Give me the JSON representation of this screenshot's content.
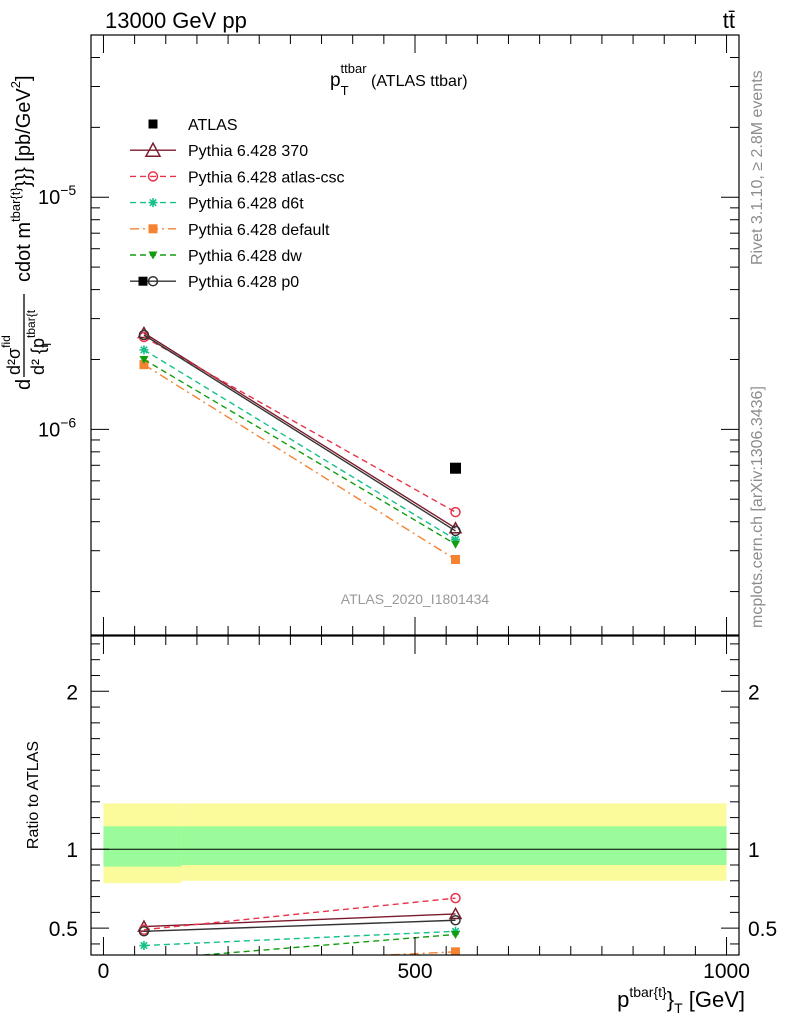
{
  "header": {
    "energy_label": "13000 GeV pp",
    "process_label": "tt̄"
  },
  "side_labels": {
    "rivet": "Rivet 3.1.10, ≥ 2.8M events",
    "mcplots": "mcplots.cern.ch [arXiv:1306.3436]"
  },
  "chart_data": [
    {
      "type": "line",
      "panel": "main",
      "title": {
        "main": "p",
        "sub": "T",
        "sup": "ttbar",
        "rest": " (ATLAS ttbar)"
      },
      "ylabel": "d d²σ^fid / d² {p^tbar{t}_T cdot m^{tbar{t}}}} [pb/GeV²]",
      "ylabel_parts": {
        "d": "d",
        "num": "d²σ",
        "num_sup": "fid",
        "den": "d² {p",
        "den_sup": "tbar{t",
        "den_sub": "T",
        "rest": "cdot m",
        "rest_sup": "tbar{t}",
        "rest2": "}}} [pb/GeV",
        "unit_sup": "2",
        "unit_close": "]"
      },
      "yscale": "log",
      "xlim": [
        -20,
        1020
      ],
      "ylim": [
        1.3e-07,
        5e-05
      ],
      "ytick_labels": [
        {
          "value": 1e-05,
          "base": "10",
          "exp": "−5"
        },
        {
          "value": 1e-06,
          "base": "10",
          "exp": "−6"
        }
      ],
      "watermark": "ATLAS_2020_I1801434",
      "legend_position": "top-left",
      "series": [
        {
          "name": "ATLAS",
          "color": "#000000",
          "marker": "square",
          "style": "none",
          "x": [
            565
          ],
          "y": [
            6.8e-07
          ]
        },
        {
          "name": "Pythia 6.428 370",
          "color": "#7b1a2b",
          "marker": "triangle-open",
          "style": "solid",
          "x": [
            65,
            565
          ],
          "y": [
            2.6e-06,
            3.75e-07
          ]
        },
        {
          "name": "Pythia 6.428 atlas-csc",
          "color": "#e8344a",
          "marker": "circle-open",
          "style": "dashed",
          "x": [
            65,
            565
          ],
          "y": [
            2.5e-06,
            4.4e-07
          ]
        },
        {
          "name": "Pythia 6.428 d6t",
          "color": "#16c08a",
          "marker": "star",
          "style": "dashed",
          "x": [
            65,
            565
          ],
          "y": [
            2.2e-06,
            3.35e-07
          ]
        },
        {
          "name": "Pythia 6.428 default",
          "color": "#f58231",
          "marker": "square",
          "style": "dashdot",
          "x": [
            65,
            565
          ],
          "y": [
            1.9e-06,
            2.75e-07
          ]
        },
        {
          "name": "Pythia 6.428 dw",
          "color": "#129d0f",
          "marker": "triangle-down",
          "style": "dashed",
          "x": [
            65,
            565
          ],
          "y": [
            2e-06,
            3.2e-07
          ]
        },
        {
          "name": "Pythia 6.428 p0",
          "color": "#333333",
          "marker": "circle-open-filled-square",
          "style": "solid",
          "x": [
            65,
            565
          ],
          "y": [
            2.55e-06,
            3.65e-07
          ]
        }
      ]
    },
    {
      "type": "line",
      "panel": "ratio",
      "ylabel": "Ratio to ATLAS",
      "xlabel": {
        "main": "p",
        "sup": "tbar{t}",
        "close": "}",
        "sub": "T",
        "unit": " [GeV]"
      },
      "xlim": [
        -20,
        1020
      ],
      "ylim": [
        0.33,
        2.35
      ],
      "xticks": [
        0,
        500,
        1000
      ],
      "xtick_labels": [
        "0",
        "500",
        "1000"
      ],
      "yticks": [
        0.5,
        1,
        2
      ],
      "ytick_labels": [
        "0.5",
        "1",
        "2"
      ],
      "bands": [
        {
          "name": "yellow",
          "color": "#fbfb9b",
          "bins": [
            {
              "x0": 0,
              "x1": 125,
              "lo": 0.785,
              "hi": 1.29
            },
            {
              "x0": 125,
              "x1": 1000,
              "lo": 0.8,
              "hi": 1.29
            }
          ]
        },
        {
          "name": "green",
          "color": "#99fb99",
          "bins": [
            {
              "x0": 0,
              "x1": 125,
              "lo": 0.89,
              "hi": 1.145
            },
            {
              "x0": 125,
              "x1": 1000,
              "lo": 0.9,
              "hi": 1.145
            }
          ]
        }
      ],
      "series": [
        {
          "name": "Pythia 6.428 370",
          "color": "#7b1a2b",
          "marker": "triangle-open",
          "style": "solid",
          "x": [
            65,
            565
          ],
          "y": [
            0.51,
            0.59
          ]
        },
        {
          "name": "Pythia 6.428 atlas-csc",
          "color": "#e8344a",
          "marker": "circle-open",
          "style": "dashed",
          "x": [
            65,
            565
          ],
          "y": [
            0.49,
            0.69
          ]
        },
        {
          "name": "Pythia 6.428 d6t",
          "color": "#16c08a",
          "marker": "star",
          "style": "dashed",
          "x": [
            65,
            565
          ],
          "y": [
            0.39,
            0.48
          ]
        },
        {
          "name": "Pythia 6.428 default",
          "color": "#f58231",
          "marker": "square",
          "style": "dashdot",
          "x": [
            65,
            565
          ],
          "y": [
            0.26,
            0.35
          ]
        },
        {
          "name": "Pythia 6.428 dw",
          "color": "#129d0f",
          "marker": "triangle-down",
          "style": "dashed",
          "x": [
            65,
            565
          ],
          "y": [
            0.3,
            0.46
          ]
        },
        {
          "name": "Pythia 6.428 p0",
          "color": "#333333",
          "marker": "circle-open-filled-square",
          "style": "solid",
          "x": [
            65,
            565
          ],
          "y": [
            0.48,
            0.55
          ]
        }
      ]
    }
  ]
}
